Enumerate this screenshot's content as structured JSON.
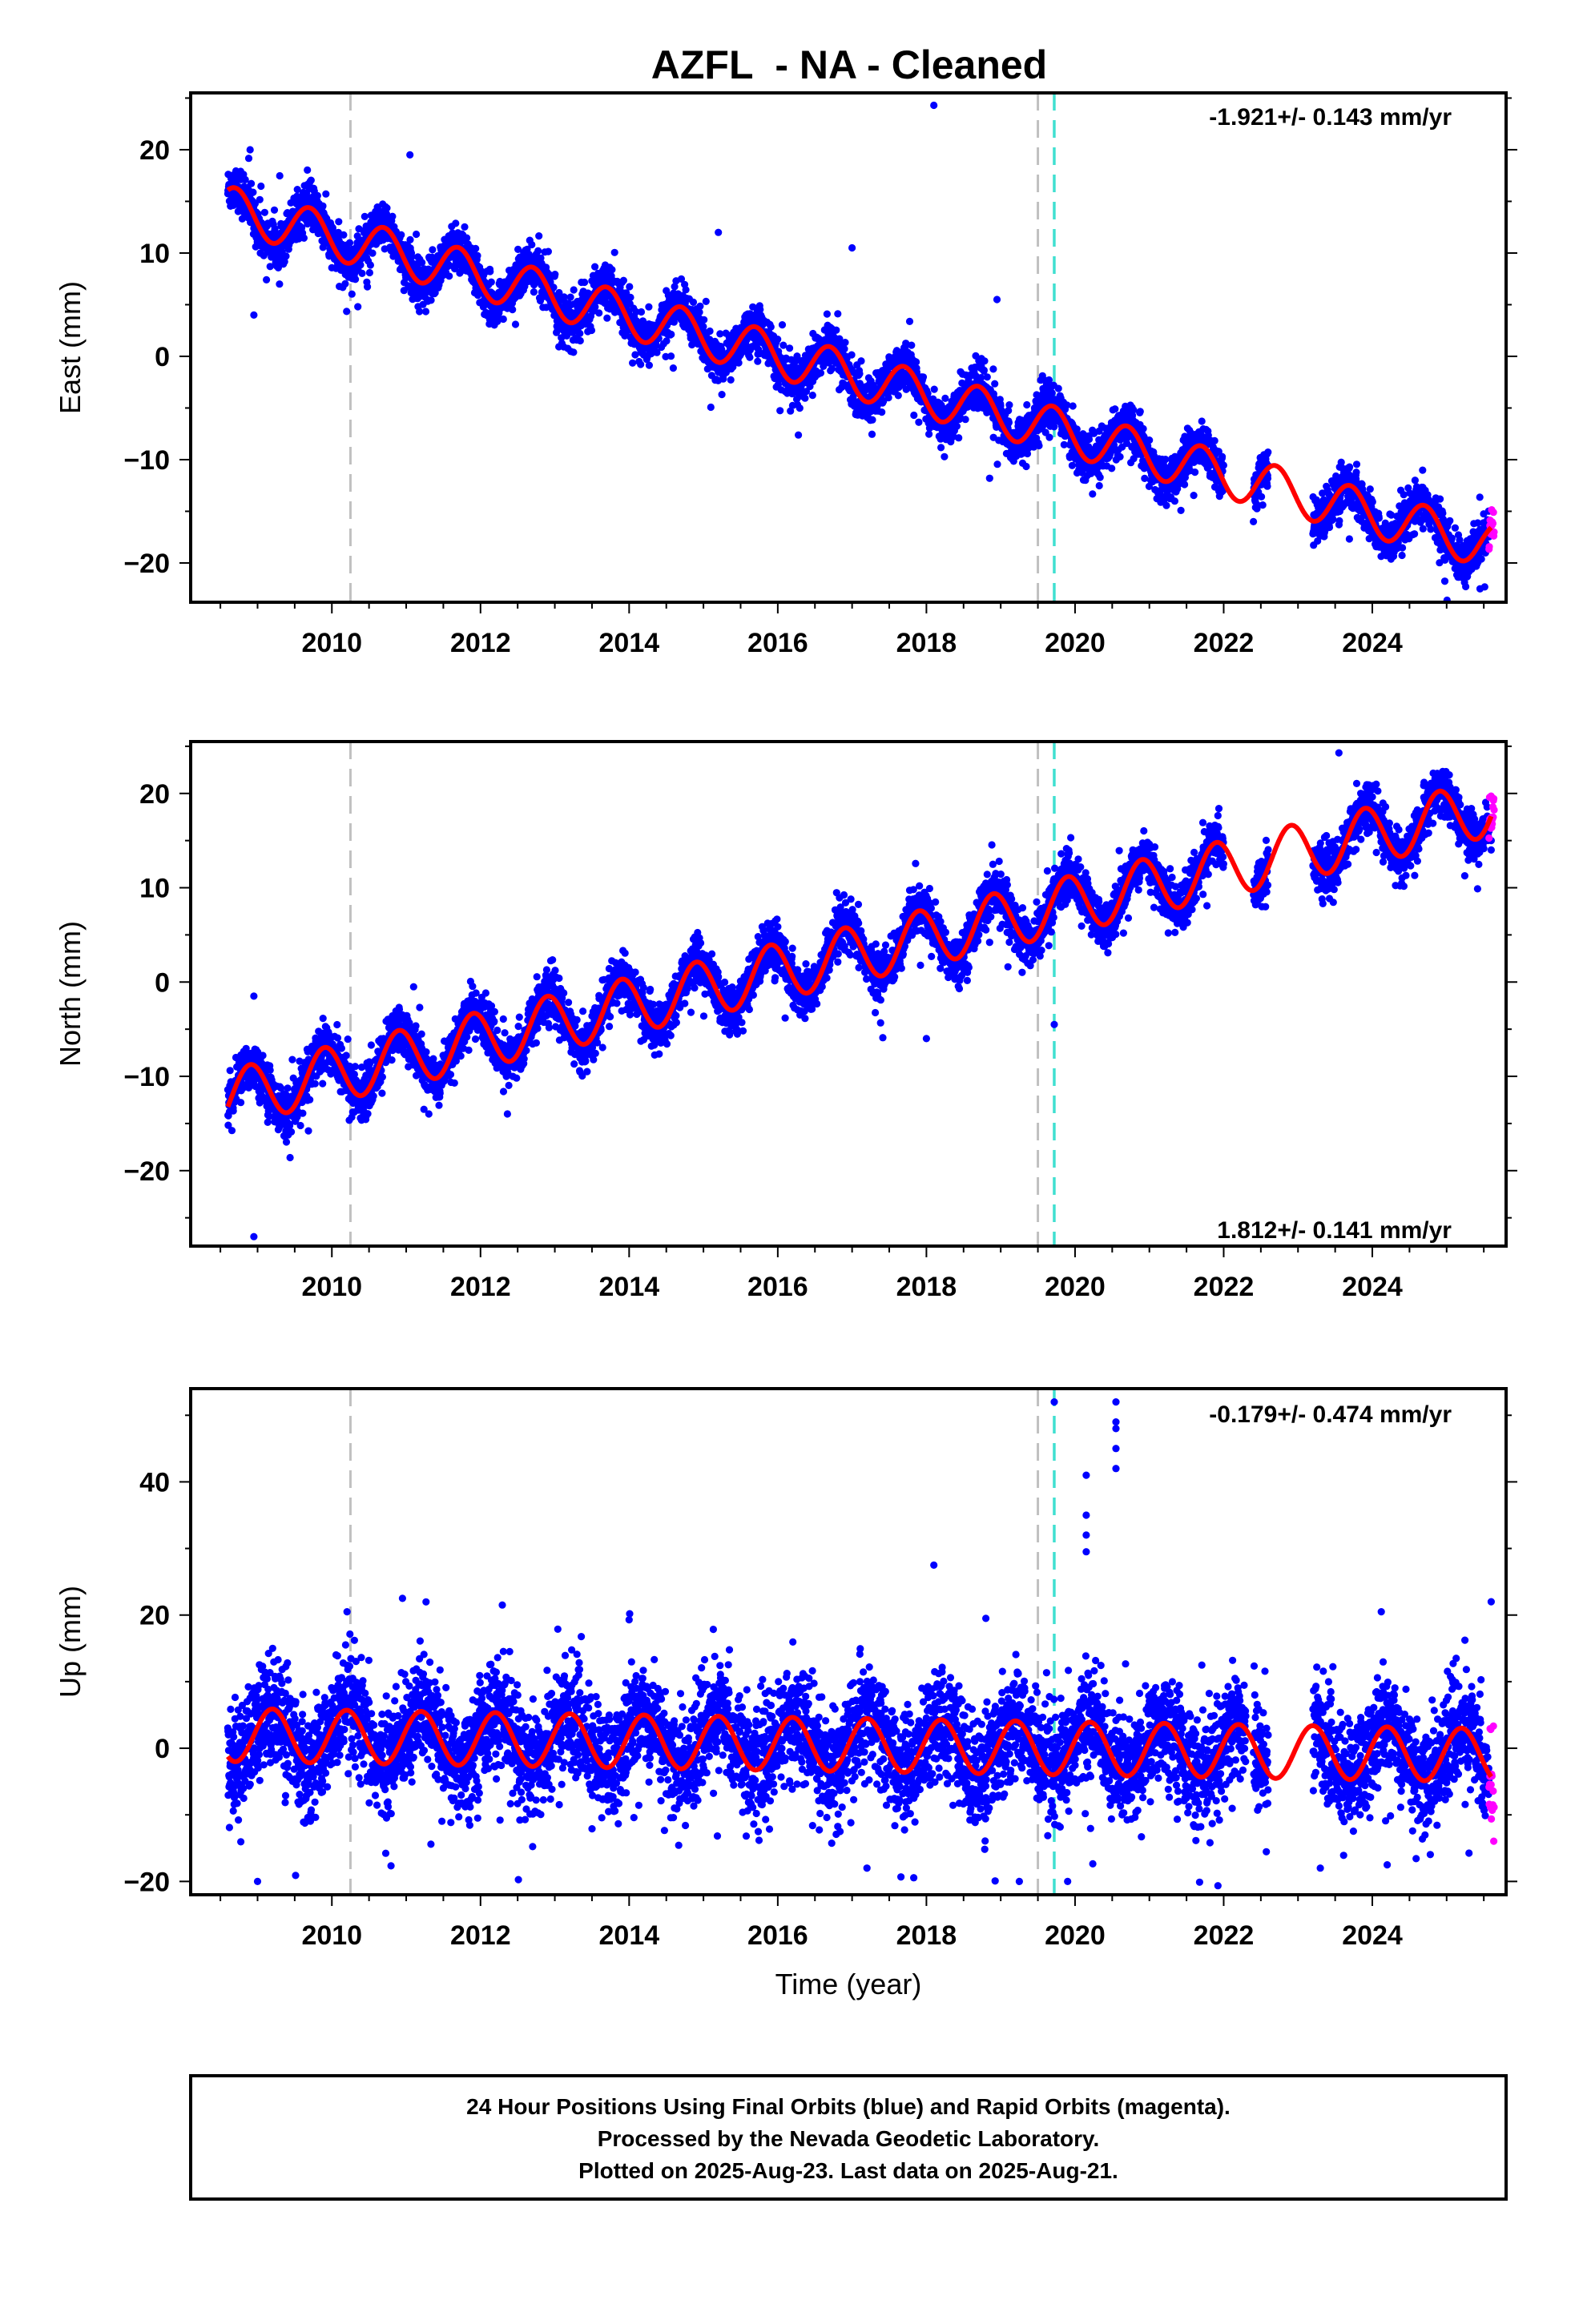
{
  "title": "AZFL  - NA - Cleaned",
  "xlabel": "Time (year)",
  "caption": [
    "24 Hour Positions Using Final Orbits (blue) and Rapid Orbits (magenta).",
    "Processed by the Nevada Geodetic Laboratory.",
    "Plotted on 2025-Aug-23. Last data on 2025-Aug-21."
  ],
  "colors": {
    "final_orbits": "#0000ff",
    "rapid_orbits": "#ff00ff",
    "model_fit": "#ff0000",
    "equipment_change": "#c0c0c0",
    "earthquake": "#40e0d0"
  },
  "chart_data": [
    {
      "type": "scatter",
      "component": "east",
      "ylabel": "East (mm)",
      "rate": "-1.921+/- 0.143 mm/yr",
      "xlim": [
        2008.1,
        2025.8
      ],
      "ylim": [
        -23.8,
        25.5
      ],
      "xticks": [
        2010,
        2012,
        2014,
        2016,
        2018,
        2020,
        2022,
        2024
      ],
      "yticks": [
        -20,
        -10,
        0,
        10,
        20
      ],
      "series": [
        {
          "color": "#0000ff",
          "values": "daily final-orbit positions 2008.6-2025.57"
        },
        {
          "color": "#ff00ff",
          "values": "daily rapid-orbit positions 2025.57-2025.64"
        },
        {
          "color": "#ff0000",
          "values": "model fit"
        }
      ],
      "model": {
        "offset_2008_6": 14.3,
        "rate": -1.921,
        "seasonal_amplitude": 2.2,
        "seasonal_phase_year": 0.45,
        "noise": 1.2
      },
      "gaps": [
        [
          2022.0,
          2022.4
        ],
        [
          2022.6,
          2023.2
        ]
      ],
      "outliers": [
        [
          2008.95,
          4
        ],
        [
          2008.9,
          20
        ],
        [
          2011.05,
          19.5
        ],
        [
          2010.35,
          4.8
        ],
        [
          2015.2,
          12
        ],
        [
          2017.0,
          10.5
        ],
        [
          2018.1,
          24.3
        ],
        [
          2018.95,
          5.5
        ],
        [
          2018.85,
          -11.8
        ],
        [
          2020.05,
          -10.5
        ],
        [
          2020.05,
          -11.0
        ],
        [
          2021.25,
          -11.5
        ],
        [
          2022.4,
          -16
        ],
        [
          2023.6,
          -13
        ],
        [
          2025.45,
          -22.5
        ]
      ],
      "vlines_gray": [
        2010.25,
        2019.5
      ],
      "vlines_cyan": [
        2019.72
      ]
    },
    {
      "type": "scatter",
      "component": "north",
      "ylabel": "North (mm)",
      "rate": "1.812+/- 0.141 mm/yr",
      "xlim": [
        2008.1,
        2025.8
      ],
      "ylim": [
        -28.0,
        25.5
      ],
      "xticks": [
        2010,
        2012,
        2014,
        2016,
        2018,
        2020,
        2022,
        2024
      ],
      "yticks": [
        -20,
        -10,
        0,
        10,
        20
      ],
      "series": [
        {
          "color": "#0000ff",
          "values": "daily final-orbit positions 2008.6-2025.57"
        },
        {
          "color": "#ff00ff",
          "values": "daily rapid-orbit positions 2025.57-2025.64"
        },
        {
          "color": "#ff0000",
          "values": "model fit"
        }
      ],
      "model": {
        "offset_2008_6": -12.3,
        "rate": 1.812,
        "seasonal_amplitude": 3.0,
        "seasonal_phase_year": 0.65,
        "noise": 1.4
      },
      "gaps": [
        [
          2022.0,
          2022.4
        ],
        [
          2022.6,
          2023.2
        ]
      ],
      "outliers": [
        [
          2008.95,
          -1.5
        ],
        [
          2008.95,
          -27
        ],
        [
          2011.1,
          -0.5
        ],
        [
          2019.72,
          -4.5
        ],
        [
          2018.0,
          -6
        ],
        [
          2023.55,
          24.3
        ],
        [
          2025.6,
          14
        ],
        [
          2025.6,
          15
        ]
      ],
      "vlines_gray": [
        2010.25,
        2019.5
      ],
      "vlines_cyan": [
        2019.72
      ]
    },
    {
      "type": "scatter",
      "component": "up",
      "ylabel": "Up (mm)",
      "rate": "-0.179+/- 0.474 mm/yr",
      "xlim": [
        2008.1,
        2025.8
      ],
      "ylim": [
        -22.0,
        54.0
      ],
      "xticks": [
        2010,
        2012,
        2014,
        2016,
        2018,
        2020,
        2022,
        2024
      ],
      "yticks": [
        -20,
        0,
        20,
        40
      ],
      "series": [
        {
          "color": "#0000ff",
          "values": "daily final-orbit positions 2008.6-2025.57"
        },
        {
          "color": "#ff00ff",
          "values": "daily rapid-orbit positions 2025.57-2025.64"
        },
        {
          "color": "#ff0000",
          "values": "model fit"
        }
      ],
      "model": {
        "offset_2008_6": 2.0,
        "rate": -0.179,
        "seasonal_amplitude": 4.0,
        "seasonal_phase_year": 0.95,
        "noise": 4.5
      },
      "gaps": [
        [
          2022.3,
          2022.4
        ],
        [
          2022.6,
          2023.2
        ]
      ],
      "outliers": [
        [
          2019.72,
          52
        ],
        [
          2020.15,
          41
        ],
        [
          2020.15,
          32
        ],
        [
          2020.15,
          29.5
        ],
        [
          2020.15,
          35
        ],
        [
          2020.55,
          52
        ],
        [
          2020.55,
          49
        ],
        [
          2020.55,
          48
        ],
        [
          2020.55,
          45
        ],
        [
          2020.55,
          42
        ],
        [
          2018.1,
          27.5
        ],
        [
          2010.95,
          22.5
        ],
        [
          2025.6,
          22
        ],
        [
          2018.8,
          19.5
        ],
        [
          2014.0,
          19.3
        ],
        [
          2009.0,
          -20
        ],
        [
          2019.25,
          -20
        ],
        [
          2019.9,
          -20
        ],
        [
          2023.3,
          -18
        ],
        [
          2024.2,
          -17.5
        ],
        [
          2017.2,
          -18
        ]
      ],
      "vlines_gray": [
        2010.25,
        2019.5
      ],
      "vlines_cyan": [
        2019.72
      ]
    }
  ]
}
